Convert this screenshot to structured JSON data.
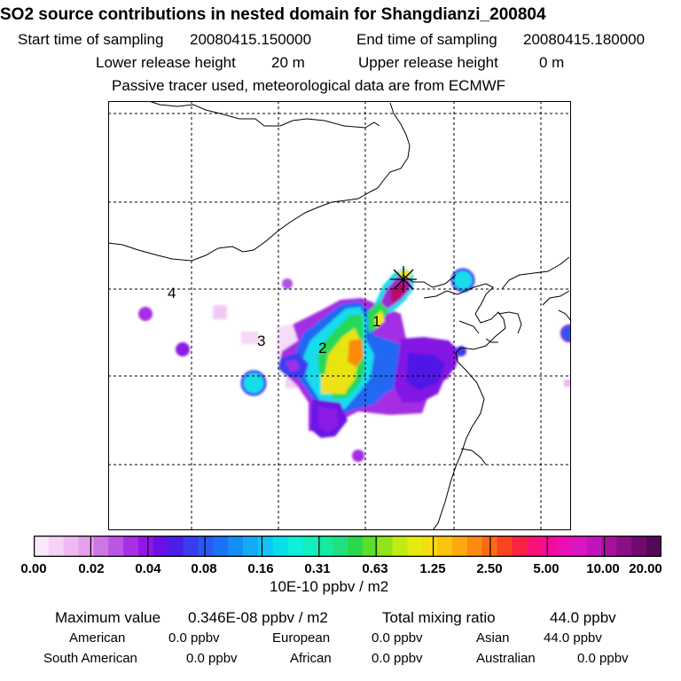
{
  "header": {
    "title": "SO2 source contributions in nested domain for Shangdianzi_200804",
    "start_label": "Start time of sampling",
    "start_value": "20080415.150000",
    "end_label": "End time of sampling",
    "end_value": "20080415.180000",
    "lower_label": "Lower release height",
    "lower_value": "20 m",
    "upper_label": "Upper release height",
    "upper_value": "0 m",
    "note": "Passive tracer used, meteorological data are from ECMWF"
  },
  "map": {
    "region_labels": [
      "1",
      "2",
      "3",
      "4"
    ],
    "receptor_marker": "asterisk-cross",
    "gridlines": "dashed"
  },
  "colorbar": {
    "tick_labels": [
      "0.00",
      "0.02",
      "0.04",
      "0.08",
      "0.16",
      "0.31",
      "0.63",
      "1.25",
      "2.50",
      "5.00",
      "10.00",
      "20.00"
    ],
    "unit": "10E-10 ppbv / m2",
    "colors": [
      "#fbe8fb",
      "#f6d2f6",
      "#efbaf0",
      "#e6a0ea",
      "#cc77e6",
      "#bb55e6",
      "#a930e6",
      "#9415e6",
      "#6a10e6",
      "#4a1ee8",
      "#3a3cf0",
      "#2a58f4",
      "#1a72f6",
      "#168ef8",
      "#14aaf8",
      "#10c4f6",
      "#08e0e8",
      "#10eedc",
      "#12eec0",
      "#14eaa0",
      "#22e080",
      "#2ad84c",
      "#58e02a",
      "#90e41a",
      "#c0ec14",
      "#e4ec0e",
      "#f6dc10",
      "#fac40e",
      "#fca80e",
      "#fc8a10",
      "#fc6a16",
      "#fc441e",
      "#fc2244",
      "#fc1276",
      "#f40c9c",
      "#ec10b4",
      "#da16c0",
      "#c214bc",
      "#a8109c",
      "#8a0e84",
      "#700a6e",
      "#560858"
    ]
  },
  "stats": {
    "max_label": "Maximum value",
    "max_value": "0.346E-08 ppbv / m2",
    "total_label": "Total mixing ratio",
    "total_value": "44.0 ppbv",
    "regions": [
      {
        "name": "American",
        "value": "0.0 ppbv"
      },
      {
        "name": "European",
        "value": "0.0 ppbv"
      },
      {
        "name": "Asian",
        "value": "44.0 ppbv"
      },
      {
        "name": "South American",
        "value": "0.0 ppbv"
      },
      {
        "name": "African",
        "value": "0.0 ppbv"
      },
      {
        "name": "Australian",
        "value": "0.0 ppbv"
      }
    ]
  }
}
